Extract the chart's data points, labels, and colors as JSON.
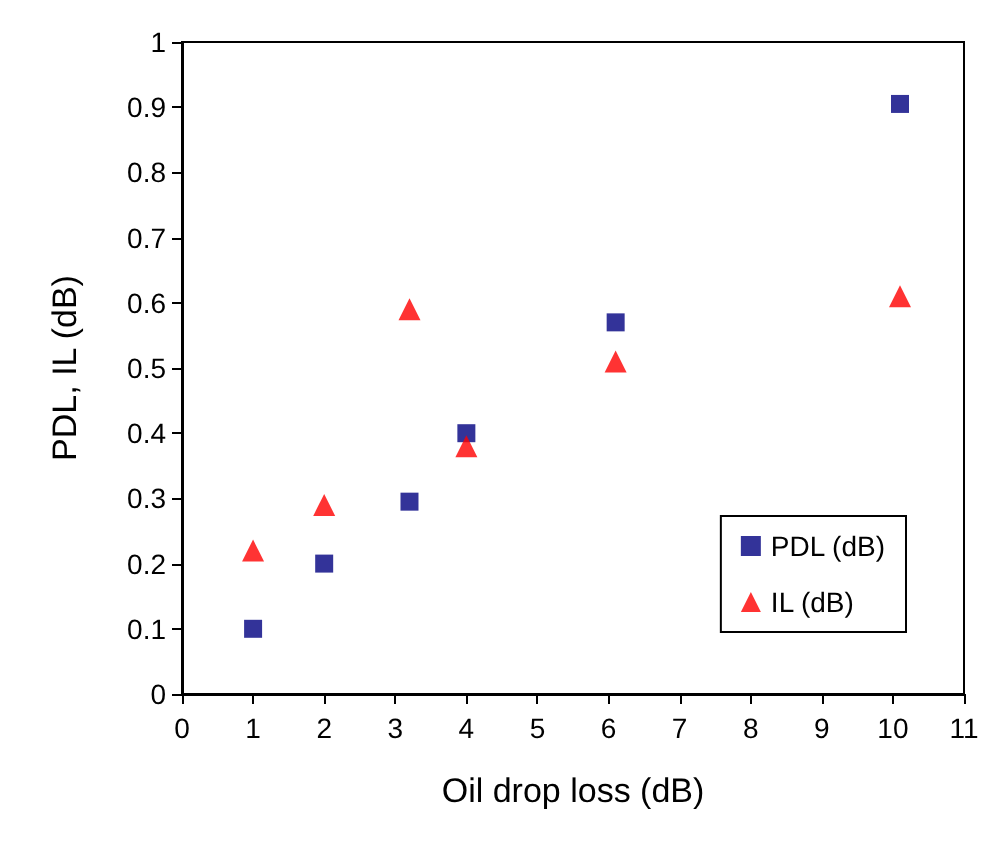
{
  "chart_data": {
    "type": "scatter",
    "xlabel": "Oil drop loss (dB)",
    "ylabel": "PDL, IL (dB)",
    "xlim": [
      0,
      11
    ],
    "xticks": [
      0,
      1,
      2,
      3,
      4,
      5,
      6,
      7,
      8,
      9,
      10,
      11
    ],
    "ylim": [
      0,
      1
    ],
    "yticks": [
      0,
      0.1,
      0.2,
      0.3,
      0.4,
      0.5,
      0.6,
      0.7,
      0.8,
      0.9,
      1
    ],
    "grid": false,
    "legend": "right",
    "series": [
      {
        "name": "PDL (dB)",
        "color": "#000080",
        "marker": "square",
        "x": [
          1,
          2,
          3.2,
          4,
          6.1,
          10.1
        ],
        "values": [
          0.1,
          0.2,
          0.295,
          0.4,
          0.57,
          0.905
        ]
      },
      {
        "name": "IL (dB)",
        "color": "#ff0000",
        "marker": "triangle",
        "x": [
          1,
          2,
          3.2,
          4,
          6.1,
          10.1
        ],
        "values": [
          0.22,
          0.29,
          0.59,
          0.38,
          0.51,
          0.61
        ]
      }
    ]
  }
}
